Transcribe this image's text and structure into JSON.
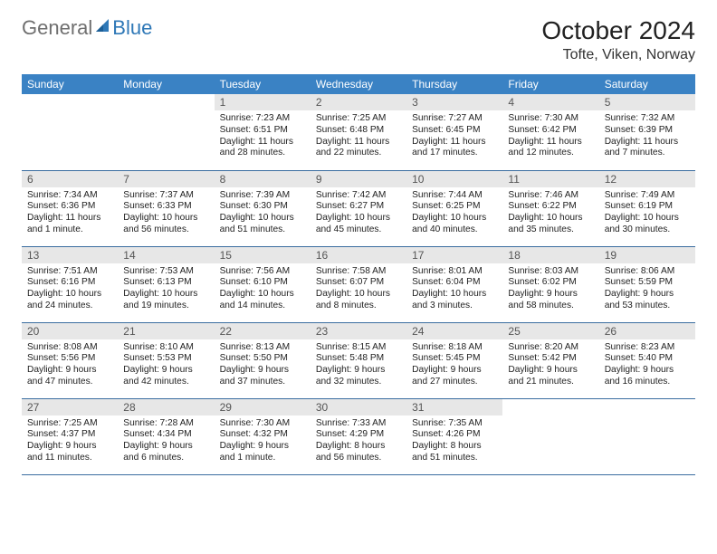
{
  "brand": {
    "part1": "General",
    "part2": "Blue"
  },
  "title": "October 2024",
  "location": "Tofte, Viken, Norway",
  "colors": {
    "header_bg": "#3a82c4",
    "header_text": "#ffffff",
    "daynum_bg": "#e7e7e7",
    "daynum_text": "#555555",
    "row_border": "#3a6da0",
    "logo_gray": "#6f6f6f",
    "logo_blue": "#2f78b7",
    "page_bg": "#ffffff"
  },
  "fonts": {
    "family": "Arial, Helvetica, sans-serif",
    "month_title_pt": 28,
    "location_pt": 16,
    "weekday_pt": 12,
    "daynum_pt": 12,
    "cell_pt": 10.2
  },
  "weekdays": [
    "Sunday",
    "Monday",
    "Tuesday",
    "Wednesday",
    "Thursday",
    "Friday",
    "Saturday"
  ],
  "weeks": [
    [
      {
        "n": "",
        "sr": "",
        "ss": "",
        "dl": ""
      },
      {
        "n": "",
        "sr": "",
        "ss": "",
        "dl": ""
      },
      {
        "n": "1",
        "sr": "Sunrise: 7:23 AM",
        "ss": "Sunset: 6:51 PM",
        "dl": "Daylight: 11 hours and 28 minutes."
      },
      {
        "n": "2",
        "sr": "Sunrise: 7:25 AM",
        "ss": "Sunset: 6:48 PM",
        "dl": "Daylight: 11 hours and 22 minutes."
      },
      {
        "n": "3",
        "sr": "Sunrise: 7:27 AM",
        "ss": "Sunset: 6:45 PM",
        "dl": "Daylight: 11 hours and 17 minutes."
      },
      {
        "n": "4",
        "sr": "Sunrise: 7:30 AM",
        "ss": "Sunset: 6:42 PM",
        "dl": "Daylight: 11 hours and 12 minutes."
      },
      {
        "n": "5",
        "sr": "Sunrise: 7:32 AM",
        "ss": "Sunset: 6:39 PM",
        "dl": "Daylight: 11 hours and 7 minutes."
      }
    ],
    [
      {
        "n": "6",
        "sr": "Sunrise: 7:34 AM",
        "ss": "Sunset: 6:36 PM",
        "dl": "Daylight: 11 hours and 1 minute."
      },
      {
        "n": "7",
        "sr": "Sunrise: 7:37 AM",
        "ss": "Sunset: 6:33 PM",
        "dl": "Daylight: 10 hours and 56 minutes."
      },
      {
        "n": "8",
        "sr": "Sunrise: 7:39 AM",
        "ss": "Sunset: 6:30 PM",
        "dl": "Daylight: 10 hours and 51 minutes."
      },
      {
        "n": "9",
        "sr": "Sunrise: 7:42 AM",
        "ss": "Sunset: 6:27 PM",
        "dl": "Daylight: 10 hours and 45 minutes."
      },
      {
        "n": "10",
        "sr": "Sunrise: 7:44 AM",
        "ss": "Sunset: 6:25 PM",
        "dl": "Daylight: 10 hours and 40 minutes."
      },
      {
        "n": "11",
        "sr": "Sunrise: 7:46 AM",
        "ss": "Sunset: 6:22 PM",
        "dl": "Daylight: 10 hours and 35 minutes."
      },
      {
        "n": "12",
        "sr": "Sunrise: 7:49 AM",
        "ss": "Sunset: 6:19 PM",
        "dl": "Daylight: 10 hours and 30 minutes."
      }
    ],
    [
      {
        "n": "13",
        "sr": "Sunrise: 7:51 AM",
        "ss": "Sunset: 6:16 PM",
        "dl": "Daylight: 10 hours and 24 minutes."
      },
      {
        "n": "14",
        "sr": "Sunrise: 7:53 AM",
        "ss": "Sunset: 6:13 PM",
        "dl": "Daylight: 10 hours and 19 minutes."
      },
      {
        "n": "15",
        "sr": "Sunrise: 7:56 AM",
        "ss": "Sunset: 6:10 PM",
        "dl": "Daylight: 10 hours and 14 minutes."
      },
      {
        "n": "16",
        "sr": "Sunrise: 7:58 AM",
        "ss": "Sunset: 6:07 PM",
        "dl": "Daylight: 10 hours and 8 minutes."
      },
      {
        "n": "17",
        "sr": "Sunrise: 8:01 AM",
        "ss": "Sunset: 6:04 PM",
        "dl": "Daylight: 10 hours and 3 minutes."
      },
      {
        "n": "18",
        "sr": "Sunrise: 8:03 AM",
        "ss": "Sunset: 6:02 PM",
        "dl": "Daylight: 9 hours and 58 minutes."
      },
      {
        "n": "19",
        "sr": "Sunrise: 8:06 AM",
        "ss": "Sunset: 5:59 PM",
        "dl": "Daylight: 9 hours and 53 minutes."
      }
    ],
    [
      {
        "n": "20",
        "sr": "Sunrise: 8:08 AM",
        "ss": "Sunset: 5:56 PM",
        "dl": "Daylight: 9 hours and 47 minutes."
      },
      {
        "n": "21",
        "sr": "Sunrise: 8:10 AM",
        "ss": "Sunset: 5:53 PM",
        "dl": "Daylight: 9 hours and 42 minutes."
      },
      {
        "n": "22",
        "sr": "Sunrise: 8:13 AM",
        "ss": "Sunset: 5:50 PM",
        "dl": "Daylight: 9 hours and 37 minutes."
      },
      {
        "n": "23",
        "sr": "Sunrise: 8:15 AM",
        "ss": "Sunset: 5:48 PM",
        "dl": "Daylight: 9 hours and 32 minutes."
      },
      {
        "n": "24",
        "sr": "Sunrise: 8:18 AM",
        "ss": "Sunset: 5:45 PM",
        "dl": "Daylight: 9 hours and 27 minutes."
      },
      {
        "n": "25",
        "sr": "Sunrise: 8:20 AM",
        "ss": "Sunset: 5:42 PM",
        "dl": "Daylight: 9 hours and 21 minutes."
      },
      {
        "n": "26",
        "sr": "Sunrise: 8:23 AM",
        "ss": "Sunset: 5:40 PM",
        "dl": "Daylight: 9 hours and 16 minutes."
      }
    ],
    [
      {
        "n": "27",
        "sr": "Sunrise: 7:25 AM",
        "ss": "Sunset: 4:37 PM",
        "dl": "Daylight: 9 hours and 11 minutes."
      },
      {
        "n": "28",
        "sr": "Sunrise: 7:28 AM",
        "ss": "Sunset: 4:34 PM",
        "dl": "Daylight: 9 hours and 6 minutes."
      },
      {
        "n": "29",
        "sr": "Sunrise: 7:30 AM",
        "ss": "Sunset: 4:32 PM",
        "dl": "Daylight: 9 hours and 1 minute."
      },
      {
        "n": "30",
        "sr": "Sunrise: 7:33 AM",
        "ss": "Sunset: 4:29 PM",
        "dl": "Daylight: 8 hours and 56 minutes."
      },
      {
        "n": "31",
        "sr": "Sunrise: 7:35 AM",
        "ss": "Sunset: 4:26 PM",
        "dl": "Daylight: 8 hours and 51 minutes."
      },
      {
        "n": "",
        "sr": "",
        "ss": "",
        "dl": ""
      },
      {
        "n": "",
        "sr": "",
        "ss": "",
        "dl": ""
      }
    ]
  ]
}
